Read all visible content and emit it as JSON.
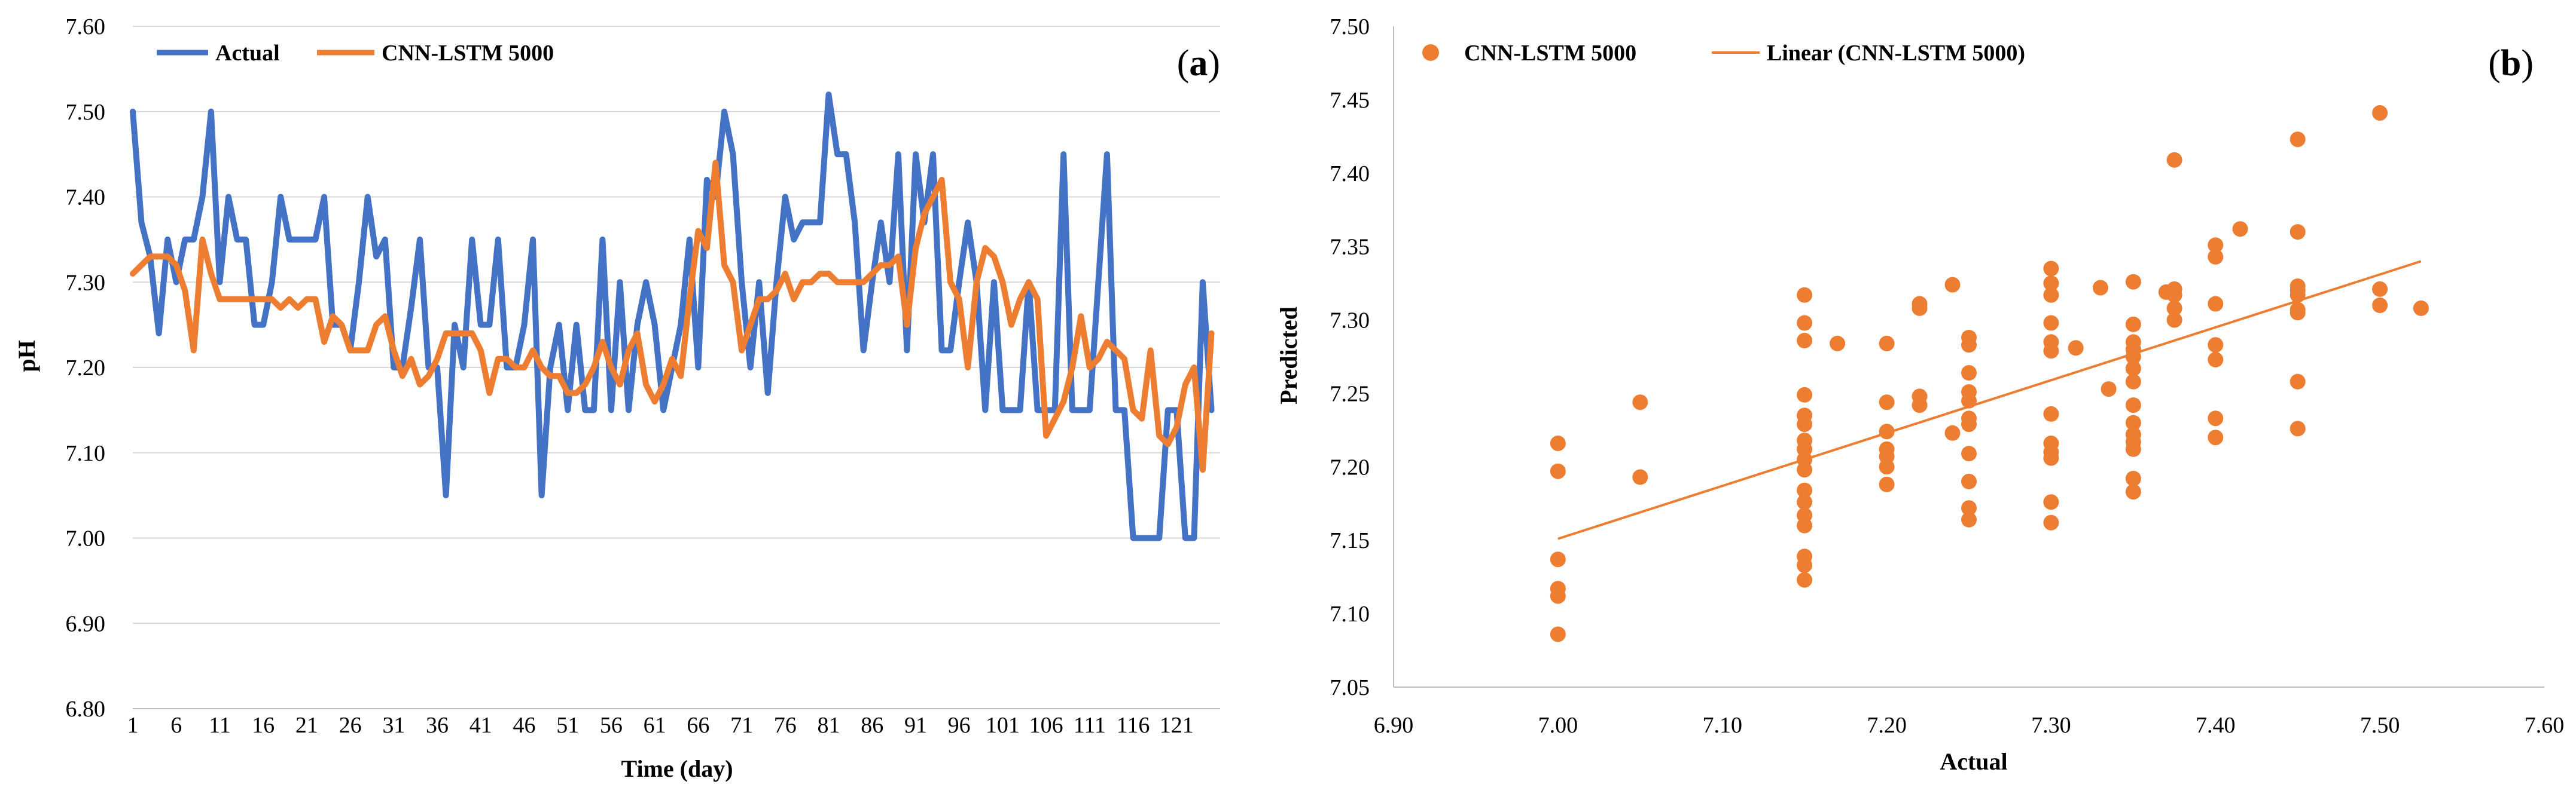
{
  "chart_data": [
    {
      "type": "line",
      "panel_label": "a",
      "title": "",
      "xlabel": "Time (day)",
      "ylabel": "pH",
      "ylim": [
        6.8,
        7.6
      ],
      "yticks": [
        "6.80",
        "6.90",
        "7.00",
        "7.10",
        "7.20",
        "7.30",
        "7.40",
        "7.50",
        "7.60"
      ],
      "xticks": [
        "1",
        "6",
        "11",
        "16",
        "21",
        "26",
        "31",
        "36",
        "41",
        "46",
        "51",
        "56",
        "61",
        "66",
        "71",
        "76",
        "81",
        "86",
        "91",
        "96",
        "101",
        "106",
        "111",
        "116",
        "121"
      ],
      "grid": "horizontal",
      "legend": "top-left",
      "colors": {
        "actual": "#4472C4",
        "cnn": "#ED7D31",
        "grid": "#d9d9d9",
        "axis": "#bfbfbf"
      },
      "x": [
        1,
        2,
        3,
        4,
        5,
        6,
        7,
        8,
        9,
        10,
        11,
        12,
        13,
        14,
        15,
        16,
        17,
        18,
        19,
        20,
        21,
        22,
        23,
        24,
        25,
        26,
        27,
        28,
        29,
        30,
        31,
        32,
        33,
        34,
        35,
        36,
        37,
        38,
        39,
        40,
        41,
        42,
        43,
        44,
        45,
        46,
        47,
        48,
        49,
        50,
        51,
        52,
        53,
        54,
        55,
        56,
        57,
        58,
        59,
        60,
        61,
        62,
        63,
        64,
        65,
        66,
        67,
        68,
        69,
        70,
        71,
        72,
        73,
        74,
        75,
        76,
        77,
        78,
        79,
        80,
        81,
        82,
        83,
        84,
        85,
        86,
        87,
        88,
        89,
        90,
        91,
        92,
        93,
        94,
        95,
        96,
        97,
        98,
        99,
        100,
        101,
        102,
        103,
        104,
        105,
        106,
        107,
        108,
        109,
        110,
        111,
        112,
        113,
        114,
        115,
        116,
        117,
        118,
        119,
        120,
        121,
        122,
        123,
        124,
        125
      ],
      "series": [
        {
          "name": "Actual",
          "values": [
            7.5,
            7.37,
            7.33,
            7.24,
            7.35,
            7.3,
            7.35,
            7.35,
            7.4,
            7.5,
            7.3,
            7.4,
            7.35,
            7.35,
            7.25,
            7.25,
            7.3,
            7.4,
            7.35,
            7.35,
            7.35,
            7.35,
            7.4,
            7.25,
            7.25,
            7.22,
            7.3,
            7.4,
            7.33,
            7.35,
            7.2,
            7.2,
            7.27,
            7.35,
            7.2,
            7.2,
            7.05,
            7.25,
            7.2,
            7.35,
            7.25,
            7.25,
            7.35,
            7.2,
            7.2,
            7.25,
            7.35,
            7.05,
            7.2,
            7.25,
            7.15,
            7.25,
            7.15,
            7.15,
            7.35,
            7.15,
            7.3,
            7.15,
            7.25,
            7.3,
            7.25,
            7.15,
            7.2,
            7.25,
            7.35,
            7.2,
            7.42,
            7.4,
            7.5,
            7.45,
            7.3,
            7.2,
            7.3,
            7.17,
            7.3,
            7.4,
            7.35,
            7.37,
            7.37,
            7.37,
            7.52,
            7.45,
            7.45,
            7.37,
            7.22,
            7.3,
            7.37,
            7.3,
            7.45,
            7.22,
            7.45,
            7.37,
            7.45,
            7.22,
            7.22,
            7.3,
            7.37,
            7.3,
            7.15,
            7.3,
            7.15,
            7.15,
            7.15,
            7.3,
            7.15,
            7.15,
            7.15,
            7.45,
            7.15,
            7.15,
            7.15,
            7.3,
            7.45,
            7.15,
            7.15,
            7.0,
            7.0,
            7.0,
            7.0,
            7.15,
            7.15,
            7.0,
            7.0,
            7.3,
            7.15
          ]
        },
        {
          "name": "CNN-LSTM 5000",
          "values": [
            7.31,
            7.32,
            7.33,
            7.33,
            7.33,
            7.32,
            7.29,
            7.22,
            7.35,
            7.31,
            7.28,
            7.28,
            7.28,
            7.28,
            7.28,
            7.28,
            7.28,
            7.27,
            7.28,
            7.27,
            7.28,
            7.28,
            7.23,
            7.26,
            7.25,
            7.22,
            7.22,
            7.22,
            7.25,
            7.26,
            7.22,
            7.19,
            7.21,
            7.18,
            7.19,
            7.21,
            7.24,
            7.24,
            7.24,
            7.24,
            7.22,
            7.17,
            7.21,
            7.21,
            7.2,
            7.2,
            7.22,
            7.2,
            7.19,
            7.19,
            7.17,
            7.17,
            7.18,
            7.2,
            7.23,
            7.2,
            7.18,
            7.22,
            7.24,
            7.18,
            7.16,
            7.18,
            7.21,
            7.19,
            7.28,
            7.36,
            7.34,
            7.44,
            7.32,
            7.3,
            7.22,
            7.25,
            7.28,
            7.28,
            7.29,
            7.31,
            7.28,
            7.3,
            7.3,
            7.31,
            7.31,
            7.3,
            7.3,
            7.3,
            7.3,
            7.31,
            7.32,
            7.32,
            7.33,
            7.25,
            7.34,
            7.38,
            7.4,
            7.42,
            7.3,
            7.28,
            7.2,
            7.3,
            7.34,
            7.33,
            7.3,
            7.25,
            7.28,
            7.3,
            7.28,
            7.12,
            7.14,
            7.16,
            7.2,
            7.26,
            7.2,
            7.21,
            7.23,
            7.22,
            7.21,
            7.15,
            7.14,
            7.22,
            7.12,
            7.11,
            7.13,
            7.18,
            7.2,
            7.08,
            7.24
          ]
        }
      ]
    },
    {
      "type": "scatter",
      "panel_label": "b",
      "title": "",
      "xlabel": "Actual",
      "ylabel": "Predicted",
      "xlim": [
        6.9,
        7.6
      ],
      "ylim": [
        7.05,
        7.5
      ],
      "xticks": [
        "6.90",
        "7.00",
        "7.10",
        "7.20",
        "7.30",
        "7.40",
        "7.50",
        "7.60"
      ],
      "yticks": [
        "7.05",
        "7.10",
        "7.15",
        "7.20",
        "7.25",
        "7.30",
        "7.35",
        "7.40",
        "7.45",
        "7.50"
      ],
      "grid": "none",
      "legend": "top-left",
      "colors": {
        "points": "#ED7D31",
        "trend": "#ED7D31",
        "axis": "#bfbfbf"
      },
      "series": [
        {
          "name": "CNN-LSTM 5000",
          "points": [
            [
              7.0,
              7.216
            ],
            [
              7.0,
              7.197
            ],
            [
              7.0,
              7.137
            ],
            [
              7.0,
              7.117
            ],
            [
              7.0,
              7.112
            ],
            [
              7.0,
              7.086
            ],
            [
              7.05,
              7.244
            ],
            [
              7.05,
              7.193
            ],
            [
              7.15,
              7.317
            ],
            [
              7.15,
              7.298
            ],
            [
              7.15,
              7.286
            ],
            [
              7.15,
              7.249
            ],
            [
              7.15,
              7.235
            ],
            [
              7.15,
              7.229
            ],
            [
              7.15,
              7.218
            ],
            [
              7.15,
              7.212
            ],
            [
              7.15,
              7.205
            ],
            [
              7.15,
              7.198
            ],
            [
              7.15,
              7.184
            ],
            [
              7.15,
              7.176
            ],
            [
              7.15,
              7.167
            ],
            [
              7.15,
              7.16
            ],
            [
              7.15,
              7.139
            ],
            [
              7.15,
              7.133
            ],
            [
              7.15,
              7.123
            ],
            [
              7.17,
              7.284
            ],
            [
              7.2,
              7.284
            ],
            [
              7.2,
              7.244
            ],
            [
              7.2,
              7.224
            ],
            [
              7.2,
              7.212
            ],
            [
              7.2,
              7.207
            ],
            [
              7.2,
              7.2
            ],
            [
              7.2,
              7.188
            ],
            [
              7.22,
              7.311
            ],
            [
              7.22,
              7.308
            ],
            [
              7.22,
              7.248
            ],
            [
              7.22,
              7.242
            ],
            [
              7.24,
              7.324
            ],
            [
              7.24,
              7.223
            ],
            [
              7.25,
              7.288
            ],
            [
              7.25,
              7.283
            ],
            [
              7.25,
              7.264
            ],
            [
              7.25,
              7.251
            ],
            [
              7.25,
              7.245
            ],
            [
              7.25,
              7.233
            ],
            [
              7.25,
              7.229
            ],
            [
              7.25,
              7.209
            ],
            [
              7.25,
              7.19
            ],
            [
              7.25,
              7.172
            ],
            [
              7.25,
              7.164
            ],
            [
              7.3,
              7.335
            ],
            [
              7.3,
              7.325
            ],
            [
              7.3,
              7.317
            ],
            [
              7.3,
              7.298
            ],
            [
              7.3,
              7.285
            ],
            [
              7.3,
              7.279
            ],
            [
              7.3,
              7.236
            ],
            [
              7.3,
              7.216
            ],
            [
              7.3,
              7.21
            ],
            [
              7.3,
              7.206
            ],
            [
              7.3,
              7.176
            ],
            [
              7.3,
              7.162
            ],
            [
              7.315,
              7.281
            ],
            [
              7.33,
              7.322
            ],
            [
              7.335,
              7.253
            ],
            [
              7.35,
              7.326
            ],
            [
              7.35,
              7.297
            ],
            [
              7.35,
              7.285
            ],
            [
              7.35,
              7.28
            ],
            [
              7.35,
              7.275
            ],
            [
              7.35,
              7.267
            ],
            [
              7.35,
              7.258
            ],
            [
              7.35,
              7.242
            ],
            [
              7.35,
              7.23
            ],
            [
              7.35,
              7.222
            ],
            [
              7.35,
              7.217
            ],
            [
              7.35,
              7.212
            ],
            [
              7.35,
              7.192
            ],
            [
              7.35,
              7.183
            ],
            [
              7.37,
              7.319
            ],
            [
              7.375,
              7.409
            ],
            [
              7.375,
              7.321
            ],
            [
              7.375,
              7.317
            ],
            [
              7.375,
              7.308
            ],
            [
              7.375,
              7.3
            ],
            [
              7.4,
              7.351
            ],
            [
              7.4,
              7.343
            ],
            [
              7.4,
              7.311
            ],
            [
              7.4,
              7.283
            ],
            [
              7.4,
              7.273
            ],
            [
              7.4,
              7.233
            ],
            [
              7.4,
              7.22
            ],
            [
              7.415,
              7.362
            ],
            [
              7.45,
              7.423
            ],
            [
              7.45,
              7.36
            ],
            [
              7.45,
              7.323
            ],
            [
              7.45,
              7.32
            ],
            [
              7.45,
              7.317
            ],
            [
              7.45,
              7.307
            ],
            [
              7.45,
              7.305
            ],
            [
              7.45,
              7.258
            ],
            [
              7.45,
              7.226
            ],
            [
              7.5,
              7.441
            ],
            [
              7.5,
              7.321
            ],
            [
              7.5,
              7.31
            ],
            [
              7.525,
              7.308
            ]
          ]
        }
      ],
      "trendline": {
        "name": "Linear (CNN-LSTM 5000)",
        "x": [
          7.0,
          7.525
        ],
        "y": [
          7.151,
          7.34
        ]
      }
    }
  ]
}
